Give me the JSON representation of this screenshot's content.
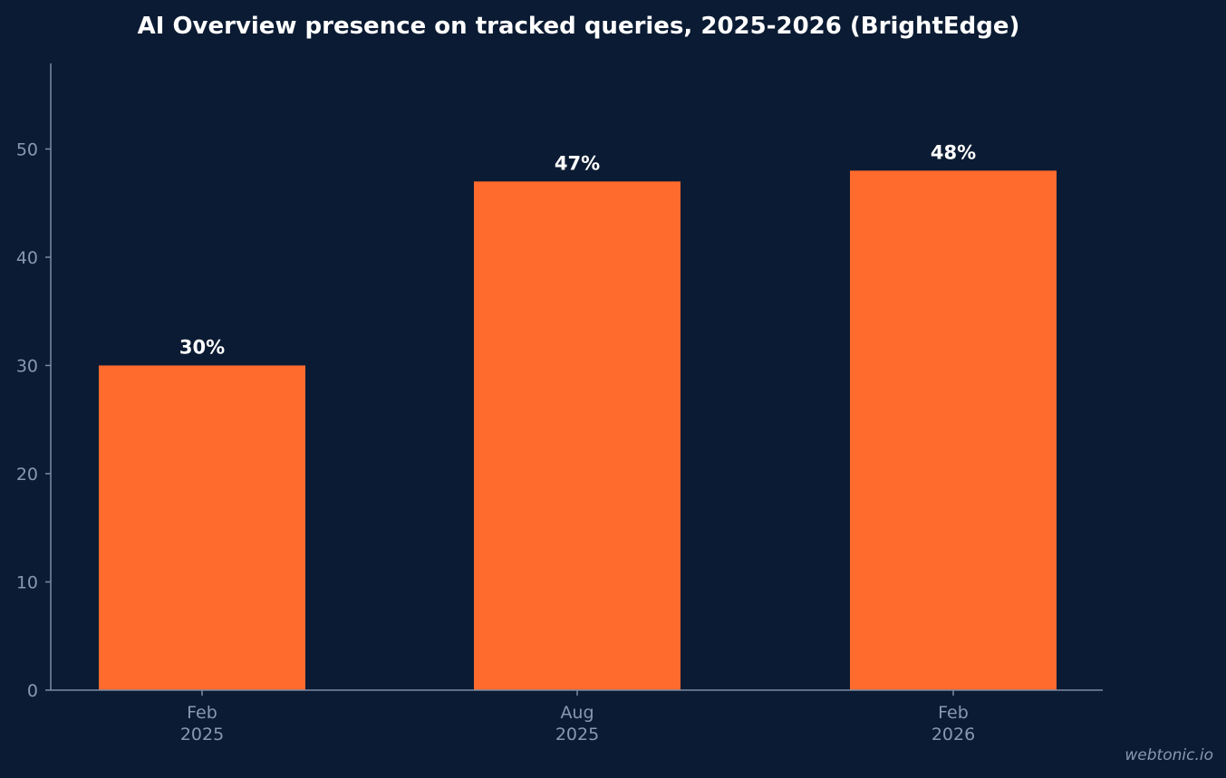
{
  "chart": {
    "title": "AI Overview presence on tracked queries, 2025-2026 (BrightEdge)",
    "watermark": "webtonic.io"
  },
  "colors": {
    "background": "#0b1b33",
    "bar": "#ff6a2d",
    "axis": "#7d8ba3",
    "tick_label": "#8898b0",
    "value_label": "#ffffff"
  },
  "chart_data": {
    "type": "bar",
    "title": "AI Overview presence on tracked queries, 2025-2026 (BrightEdge)",
    "xlabel": "",
    "ylabel": "",
    "categories": [
      [
        "Feb",
        "2025"
      ],
      [
        "Aug",
        "2025"
      ],
      [
        "Feb",
        "2026"
      ]
    ],
    "values": [
      30,
      47,
      48
    ],
    "value_labels": [
      "30%",
      "47%",
      "48%"
    ],
    "yticks": [
      0,
      10,
      20,
      30,
      40,
      50
    ],
    "ylim": [
      0,
      58
    ],
    "grid": false,
    "legend": "none"
  }
}
